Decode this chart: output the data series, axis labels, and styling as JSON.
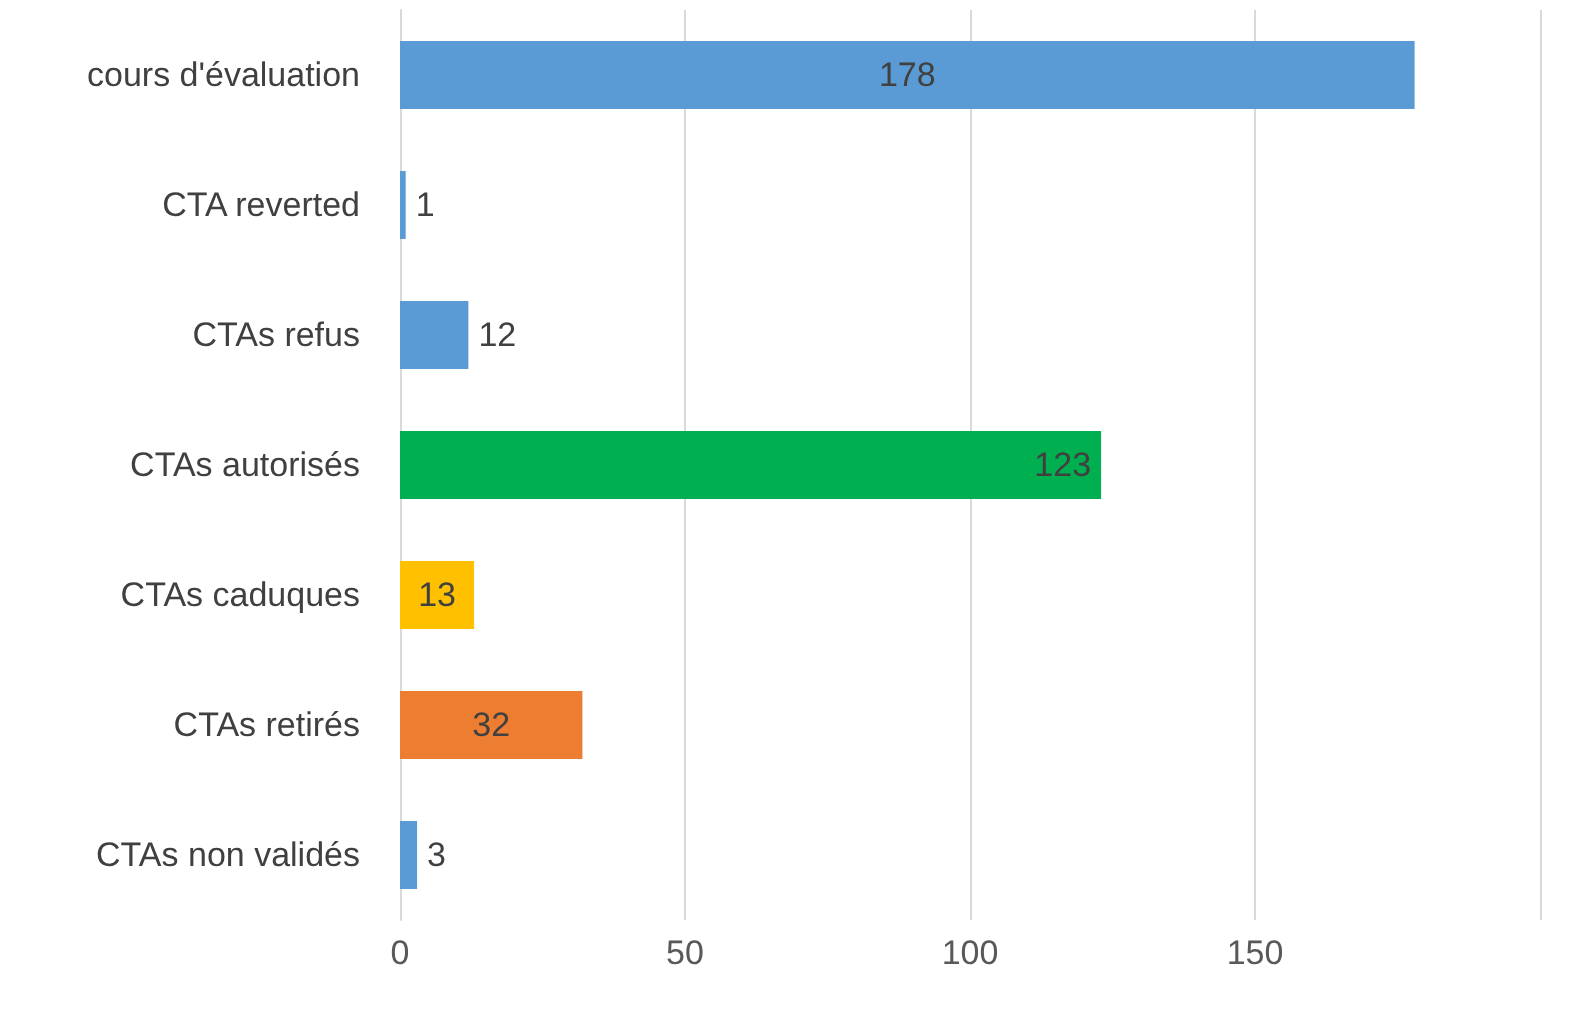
{
  "chart_data": {
    "type": "bar",
    "orientation": "horizontal",
    "categories": [
      "cours d'évaluation",
      "CTA reverted",
      "CTAs refus",
      "CTAs autorisés",
      "CTAs caduques",
      "CTAs retirés",
      "CTAs non validés"
    ],
    "values": [
      178,
      1,
      12,
      123,
      13,
      32,
      3
    ],
    "colors": [
      "#5b9bd5",
      "#5b9bd5",
      "#5b9bd5",
      "#00b050",
      "#ffc000",
      "#ed7d31",
      "#5b9bd5"
    ],
    "xlim": [
      0,
      200
    ],
    "xticks": [
      0,
      50,
      100,
      150
    ],
    "grid": "x",
    "data_labels": true
  }
}
